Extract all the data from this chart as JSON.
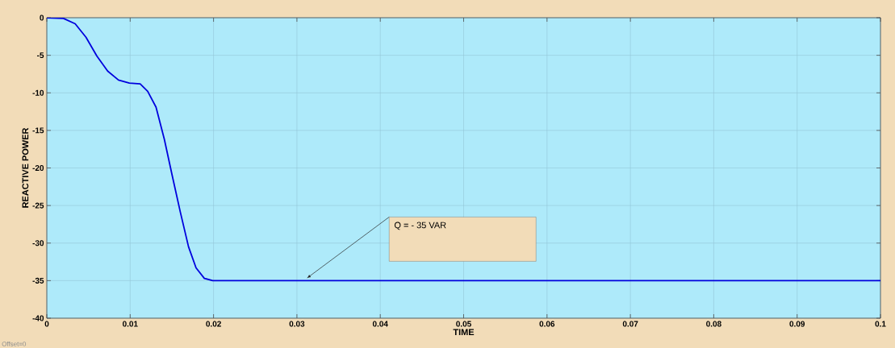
{
  "chart_data": {
    "type": "line",
    "xlabel": "TIME",
    "ylabel": "REACTIVE POWER",
    "x": [
      0,
      0.002,
      0.0034,
      0.0047,
      0.006,
      0.0073,
      0.0086,
      0.0099,
      0.0112,
      0.0121,
      0.0131,
      0.0141,
      0.015,
      0.016,
      0.017,
      0.0179,
      0.0189,
      0.0199,
      0.1
    ],
    "series": [
      {
        "color": "#0000dd",
        "values": [
          0,
          -0.1,
          -0.8,
          -2.6,
          -5.1,
          -7.1,
          -8.3,
          -8.7,
          -8.8,
          -9.8,
          -11.9,
          -16.2,
          -20.8,
          -25.8,
          -30.5,
          -33.3,
          -34.7,
          -35,
          -35
        ]
      }
    ],
    "xlim": [
      0,
      0.1
    ],
    "ylim": [
      -40,
      0
    ],
    "xticks": [
      0,
      0.01,
      0.02,
      0.03,
      0.04,
      0.05,
      0.06,
      0.07,
      0.08,
      0.09,
      0.1
    ],
    "yticks": [
      -40,
      -35,
      -30,
      -25,
      -20,
      -15,
      -10,
      -5,
      0
    ],
    "grid": true,
    "marker": "none",
    "line_style": "solid",
    "annotations": [
      {
        "text": "Q = - 35 VAR",
        "x": 0.031,
        "y": -35
      },
      "Offset=0"
    ]
  }
}
